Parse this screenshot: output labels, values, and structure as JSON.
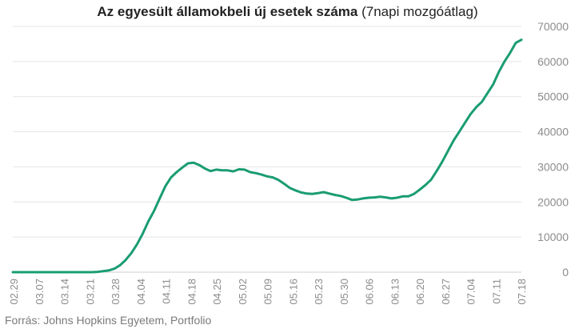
{
  "chart_data": {
    "type": "line",
    "title": "Az egyesült államokbeli új esetek száma",
    "subtitle": "(7napi mozgóátlag)",
    "source": "Forrás: Johns Hopkins Egyetem, Portfolio",
    "ylim": [
      0,
      70000
    ],
    "yticks": [
      "0",
      "10000",
      "20000",
      "30000",
      "40000",
      "50000",
      "60000",
      "70000"
    ],
    "yaxis_side": "right",
    "grid": true,
    "line_color": "#1a9c73",
    "xticks": [
      "02.29",
      "03.07",
      "03.14",
      "03.21",
      "03.28",
      "04.04",
      "04.11",
      "04.18",
      "04.25",
      "05.02",
      "05.09",
      "05.16",
      "05.23",
      "05.30",
      "06.06",
      "06.13",
      "06.20",
      "06.27",
      "07.04",
      "07.11",
      "07.18"
    ],
    "x_start": "02.29",
    "x_end": "07.18",
    "series": [
      {
        "values": [
          0,
          0,
          0,
          0,
          0,
          0,
          0,
          0,
          0,
          0,
          0,
          0,
          0,
          0,
          0,
          100,
          300,
          500,
          1000,
          2000,
          3500,
          5500,
          8000,
          11000,
          14500,
          17500,
          21000,
          24500,
          27000,
          28500,
          29800,
          31000,
          31200,
          30500,
          29500,
          28800,
          29200,
          29000,
          29000,
          28700,
          29300,
          29200,
          28500,
          28200,
          27800,
          27300,
          27000,
          26300,
          25200,
          24000,
          23300,
          22700,
          22400,
          22300,
          22500,
          22800,
          22400,
          22000,
          21700,
          21200,
          20600,
          20700,
          21000,
          21200,
          21300,
          21500,
          21300,
          21000,
          21200,
          21600,
          21600,
          22300,
          23500,
          24800,
          26300,
          28800,
          31500,
          34500,
          37500,
          40000,
          42500,
          45000,
          47000,
          48500,
          51000,
          53500,
          57000,
          60000,
          62500,
          65300,
          66200
        ]
      }
    ]
  }
}
